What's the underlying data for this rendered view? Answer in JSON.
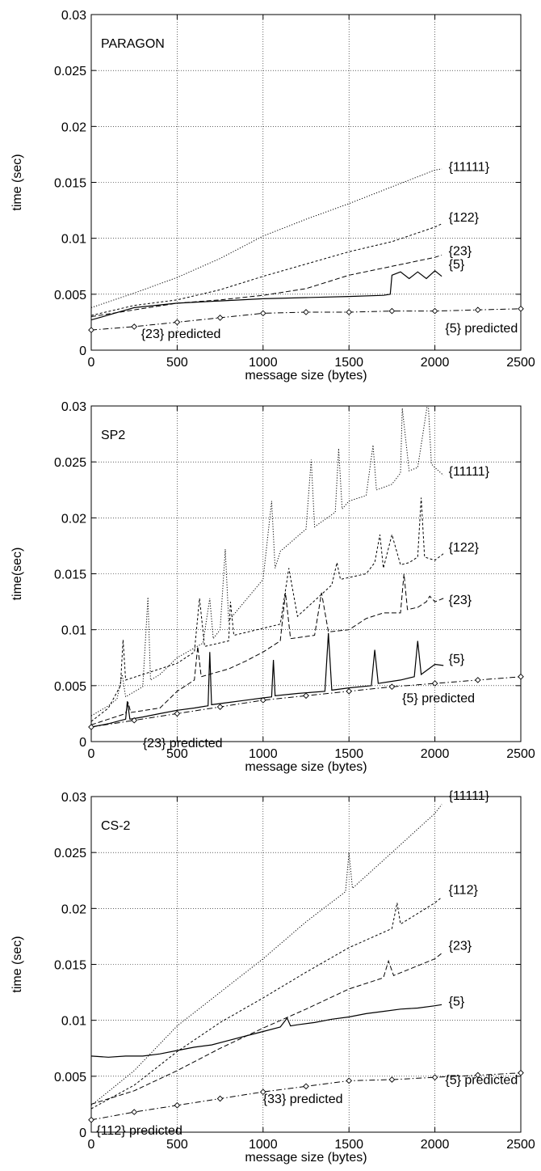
{
  "chart_data": [
    {
      "type": "line",
      "title": "PARAGON",
      "xlabel": "message size (bytes)",
      "ylabel": "time (sec)",
      "xlim": [
        0,
        2500
      ],
      "ylim": [
        0,
        0.03
      ],
      "xticks": [
        0,
        500,
        1000,
        1500,
        2000,
        2500
      ],
      "yticks": [
        0,
        0.005,
        0.01,
        0.015,
        0.02,
        0.025,
        0.03
      ],
      "grid": true,
      "series": [
        {
          "name": "{11111}",
          "style": "dotted",
          "x": [
            0,
            250,
            500,
            750,
            1000,
            1250,
            1500,
            1750,
            2000,
            2040
          ],
          "y": [
            0.0038,
            0.0051,
            0.0065,
            0.0082,
            0.0102,
            0.0117,
            0.0131,
            0.0146,
            0.0161,
            0.0162
          ]
        },
        {
          "name": "{122}",
          "style": "short-dash",
          "x": [
            0,
            250,
            500,
            750,
            1000,
            1250,
            1500,
            1750,
            2000,
            2040
          ],
          "y": [
            0.0031,
            0.004,
            0.0045,
            0.0054,
            0.0066,
            0.0077,
            0.0088,
            0.0097,
            0.011,
            0.0113
          ]
        },
        {
          "name": "{23}",
          "style": "dash",
          "x": [
            0,
            250,
            500,
            750,
            1000,
            1250,
            1500,
            1750,
            2000,
            2040
          ],
          "y": [
            0.003,
            0.0036,
            0.0042,
            0.0045,
            0.0049,
            0.0055,
            0.0067,
            0.0075,
            0.0083,
            0.0085
          ]
        },
        {
          "name": "{5}",
          "style": "solid",
          "x": [
            0,
            250,
            500,
            750,
            1000,
            1250,
            1500,
            1700,
            1740,
            1750,
            1800,
            1850,
            1900,
            1950,
            2000,
            2040
          ],
          "y": [
            0.0027,
            0.0038,
            0.0042,
            0.0044,
            0.0046,
            0.0047,
            0.0048,
            0.0049,
            0.005,
            0.0067,
            0.007,
            0.0064,
            0.007,
            0.0064,
            0.0071,
            0.0066
          ]
        },
        {
          "name": "{5} predicted",
          "style": "dash-dot-markers",
          "x": [
            0,
            250,
            500,
            750,
            1000,
            1250,
            1500,
            1750,
            2000,
            2250,
            2500
          ],
          "y": [
            0.0018,
            0.0021,
            0.0025,
            0.0029,
            0.0033,
            0.0034,
            0.0034,
            0.0035,
            0.0035,
            0.0036,
            0.0037
          ]
        }
      ],
      "labels": [
        {
          "text": "{11111}",
          "x": 2080,
          "y": 0.016
        },
        {
          "text": "{122}",
          "x": 2080,
          "y": 0.0115
        },
        {
          "text": "{23}",
          "x": 2080,
          "y": 0.0085
        },
        {
          "text": "{5}",
          "x": 2080,
          "y": 0.0073
        },
        {
          "text": "{23} predicted",
          "x": 290,
          "y": 0.0011
        },
        {
          "text": "{5} predicted",
          "x": 2060,
          "y": 0.0016
        }
      ]
    },
    {
      "type": "line",
      "title": "SP2",
      "xlabel": "message size (bytes)",
      "ylabel": "time(sec)",
      "xlim": [
        0,
        2500
      ],
      "ylim": [
        0,
        0.03
      ],
      "xticks": [
        0,
        500,
        1000,
        1500,
        2000,
        2500
      ],
      "yticks": [
        0,
        0.005,
        0.01,
        0.015,
        0.02,
        0.025,
        0.03
      ],
      "grid": true,
      "series": [
        {
          "name": "{11111}",
          "style": "dotted",
          "x": [
            0,
            100,
            150,
            180,
            200,
            300,
            330,
            345,
            400,
            500,
            650,
            690,
            710,
            750,
            780,
            800,
            1000,
            1050,
            1070,
            1100,
            1250,
            1280,
            1300,
            1420,
            1440,
            1460,
            1500,
            1600,
            1640,
            1660,
            1750,
            1800,
            1810,
            1850,
            1900,
            1960,
            1980,
            2000,
            2050
          ],
          "y": [
            0.0023,
            0.0032,
            0.0038,
            0.006,
            0.004,
            0.0049,
            0.0129,
            0.0055,
            0.006,
            0.0075,
            0.0088,
            0.0128,
            0.0092,
            0.01,
            0.0172,
            0.0108,
            0.0145,
            0.0215,
            0.0155,
            0.017,
            0.019,
            0.0252,
            0.0192,
            0.0205,
            0.0262,
            0.0208,
            0.0215,
            0.022,
            0.0265,
            0.0225,
            0.023,
            0.024,
            0.0298,
            0.0242,
            0.0245,
            0.0305,
            0.0248,
            0.0245,
            0.0238
          ]
        },
        {
          "name": "{122}",
          "style": "short-dash",
          "x": [
            0,
            100,
            170,
            185,
            200,
            400,
            500,
            600,
            630,
            660,
            800,
            810,
            830,
            1100,
            1150,
            1200,
            1400,
            1430,
            1450,
            1600,
            1650,
            1680,
            1700,
            1750,
            1800,
            1850,
            1900,
            1920,
            1940,
            2000,
            2050
          ],
          "y": [
            0.0018,
            0.003,
            0.005,
            0.0091,
            0.0055,
            0.0065,
            0.007,
            0.008,
            0.0128,
            0.0085,
            0.009,
            0.0125,
            0.0095,
            0.0105,
            0.0155,
            0.0112,
            0.014,
            0.016,
            0.0145,
            0.015,
            0.016,
            0.0185,
            0.0155,
            0.0185,
            0.0158,
            0.016,
            0.0165,
            0.0218,
            0.0165,
            0.0162,
            0.0168
          ]
        },
        {
          "name": "{23}",
          "style": "dash",
          "x": [
            0,
            100,
            200,
            215,
            230,
            400,
            500,
            600,
            620,
            640,
            800,
            900,
            1000,
            1100,
            1130,
            1160,
            1300,
            1340,
            1380,
            1500,
            1600,
            1700,
            1800,
            1820,
            1840,
            1900,
            1950,
            1970,
            2000,
            2050
          ],
          "y": [
            0.0015,
            0.002,
            0.0025,
            0.0035,
            0.0026,
            0.003,
            0.0045,
            0.0055,
            0.0085,
            0.0058,
            0.0065,
            0.0072,
            0.008,
            0.009,
            0.0133,
            0.0092,
            0.0095,
            0.0133,
            0.0098,
            0.01,
            0.011,
            0.0115,
            0.0115,
            0.015,
            0.0118,
            0.012,
            0.0125,
            0.013,
            0.0125,
            0.0128
          ]
        },
        {
          "name": "{5}",
          "style": "solid",
          "x": [
            0,
            100,
            200,
            210,
            225,
            300,
            400,
            500,
            600,
            680,
            690,
            700,
            800,
            900,
            1000,
            1050,
            1060,
            1070,
            1200,
            1360,
            1380,
            1400,
            1500,
            1630,
            1650,
            1670,
            1800,
            1880,
            1900,
            1920,
            2000,
            2050
          ],
          "y": [
            0.0013,
            0.0016,
            0.002,
            0.0036,
            0.002,
            0.0022,
            0.0025,
            0.0028,
            0.003,
            0.0032,
            0.008,
            0.0033,
            0.0035,
            0.0037,
            0.0039,
            0.004,
            0.0073,
            0.0041,
            0.0043,
            0.0045,
            0.0097,
            0.0046,
            0.0048,
            0.005,
            0.0082,
            0.0052,
            0.0055,
            0.0058,
            0.009,
            0.006,
            0.0069,
            0.0068
          ]
        },
        {
          "name": "{5} predicted",
          "style": "dash-dot-markers",
          "x": [
            0,
            250,
            500,
            750,
            1000,
            1250,
            1500,
            1750,
            2000,
            2250,
            2500
          ],
          "y": [
            0.0013,
            0.0019,
            0.0025,
            0.0031,
            0.0037,
            0.0041,
            0.0045,
            0.0049,
            0.0052,
            0.0055,
            0.0058
          ]
        }
      ],
      "labels": [
        {
          "text": "{11111}",
          "x": 2080,
          "y": 0.0238
        },
        {
          "text": "{122}",
          "x": 2080,
          "y": 0.017
        },
        {
          "text": "{23}",
          "x": 2080,
          "y": 0.0123
        },
        {
          "text": "{5}",
          "x": 2080,
          "y": 0.007
        },
        {
          "text": "{23} predicted",
          "x": 300,
          "y": -0.0005
        },
        {
          "text": "{5} predicted",
          "x": 1810,
          "y": 0.0035
        }
      ]
    },
    {
      "type": "line",
      "title": "CS-2",
      "xlabel": "message size (bytes)",
      "ylabel": "time (sec)",
      "xlim": [
        0,
        2500
      ],
      "ylim": [
        0,
        0.03
      ],
      "xticks": [
        0,
        500,
        1000,
        1500,
        2000,
        2500
      ],
      "yticks": [
        0,
        0.005,
        0.01,
        0.015,
        0.02,
        0.025,
        0.03
      ],
      "grid": true,
      "series": [
        {
          "name": "{11111}",
          "style": "dotted",
          "x": [
            0,
            250,
            500,
            750,
            1000,
            1250,
            1480,
            1500,
            1520,
            1750,
            2000,
            2040
          ],
          "y": [
            0.0024,
            0.0055,
            0.0095,
            0.0125,
            0.0155,
            0.0188,
            0.0215,
            0.025,
            0.0218,
            0.025,
            0.0285,
            0.0293
          ]
        },
        {
          "name": "{112}",
          "style": "short-dash",
          "x": [
            0,
            250,
            500,
            750,
            1000,
            1250,
            1500,
            1750,
            1780,
            1800,
            2000,
            2040
          ],
          "y": [
            0.0021,
            0.0042,
            0.0072,
            0.0098,
            0.012,
            0.0143,
            0.0165,
            0.0182,
            0.0205,
            0.0186,
            0.0205,
            0.021
          ]
        },
        {
          "name": "{23}",
          "style": "dash",
          "x": [
            0,
            250,
            500,
            750,
            1000,
            1250,
            1500,
            1700,
            1730,
            1760,
            2000,
            2040
          ],
          "y": [
            0.0025,
            0.0037,
            0.0055,
            0.0075,
            0.0093,
            0.011,
            0.0128,
            0.0138,
            0.0153,
            0.014,
            0.0155,
            0.016
          ]
        },
        {
          "name": "{5}",
          "style": "solid",
          "x": [
            0,
            100,
            200,
            300,
            400,
            500,
            600,
            700,
            800,
            900,
            1000,
            1100,
            1140,
            1160,
            1200,
            1300,
            1400,
            1500,
            1600,
            1700,
            1800,
            1900,
            2000,
            2040
          ],
          "y": [
            0.0068,
            0.0067,
            0.0068,
            0.0068,
            0.007,
            0.0073,
            0.0076,
            0.0078,
            0.0082,
            0.0086,
            0.009,
            0.0094,
            0.0102,
            0.0095,
            0.0096,
            0.0098,
            0.0101,
            0.0103,
            0.0106,
            0.0108,
            0.011,
            0.0111,
            0.0113,
            0.0114
          ]
        },
        {
          "name": "{5} predicted",
          "style": "dash-dot-markers",
          "x": [
            0,
            250,
            500,
            750,
            1000,
            1250,
            1500,
            1750,
            2000,
            2250,
            2500
          ],
          "y": [
            0.0011,
            0.0018,
            0.0024,
            0.003,
            0.0036,
            0.0041,
            0.0046,
            0.0047,
            0.0049,
            0.0051,
            0.0053
          ]
        }
      ],
      "labels": [
        {
          "text": "{11111}",
          "x": 2080,
          "y": 0.0297
        },
        {
          "text": "{112}",
          "x": 2080,
          "y": 0.0213
        },
        {
          "text": "{23}",
          "x": 2080,
          "y": 0.0163
        },
        {
          "text": "{5}",
          "x": 2080,
          "y": 0.0113
        },
        {
          "text": "{33} predicted",
          "x": 1000,
          "y": 0.0026
        },
        {
          "text": "{112} predicted",
          "x": 30,
          "y": -0.0002
        },
        {
          "text": "{5} predicted",
          "x": 2060,
          "y": 0.0043
        }
      ]
    }
  ]
}
